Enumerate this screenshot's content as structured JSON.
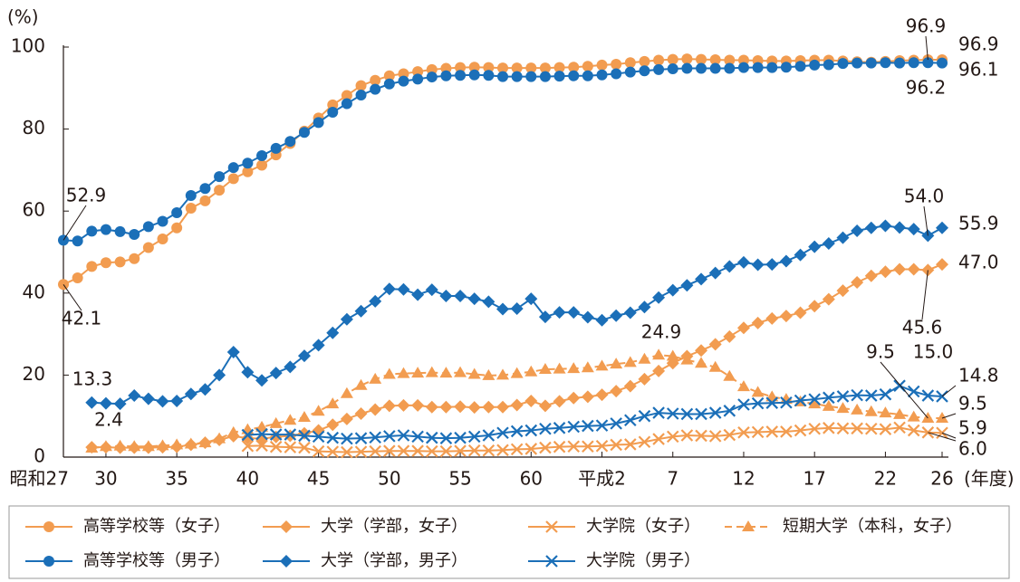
{
  "chart_data": {
    "type": "line",
    "y_label": "(%)",
    "x_label": "(年度)",
    "categories": [
      "昭和27",
      null,
      null,
      "30",
      null,
      null,
      null,
      null,
      "35",
      null,
      null,
      null,
      null,
      "40",
      null,
      null,
      null,
      null,
      "45",
      null,
      null,
      null,
      null,
      "50",
      null,
      null,
      null,
      null,
      "55",
      null,
      null,
      null,
      null,
      "60",
      null,
      null,
      null,
      null,
      "平成2",
      null,
      null,
      null,
      null,
      "7",
      null,
      null,
      null,
      null,
      "12",
      null,
      null,
      null,
      null,
      "17",
      null,
      null,
      null,
      null,
      "22",
      null,
      null,
      null,
      "26"
    ],
    "ylim": [
      0,
      100
    ],
    "yticks": [
      0,
      20,
      40,
      60,
      80,
      100
    ],
    "grid": false,
    "series": [
      {
        "name": "高等学校等（女子）",
        "color": "#f29c50",
        "marker": "circle",
        "dashed": false,
        "values": [
          42.1,
          43.7,
          46.5,
          47.4,
          47.6,
          48.4,
          51.1,
          53.2,
          55.9,
          60.7,
          62.5,
          65.1,
          67.9,
          69.6,
          71.2,
          73.7,
          76.5,
          79.5,
          82.7,
          85.9,
          88.2,
          90.6,
          91.9,
          93.0,
          93.5,
          94.0,
          94.5,
          94.8,
          95.0,
          95.1,
          95.0,
          94.9,
          94.9,
          94.9,
          94.9,
          95.0,
          95.1,
          95.3,
          95.6,
          95.8,
          96.2,
          96.5,
          96.8,
          97.0,
          97.1,
          97.0,
          96.9,
          96.8,
          96.8,
          96.7,
          96.6,
          96.6,
          96.7,
          96.8,
          96.8,
          96.6,
          96.4,
          96.3,
          96.5,
          96.7,
          96.8,
          96.9,
          96.9
        ],
        "value_labels": [
          "42.1",
          null,
          null,
          null,
          null,
          null,
          null,
          null,
          null,
          null,
          null,
          null,
          null,
          null,
          null,
          null,
          null,
          null,
          null,
          null,
          null,
          null,
          null,
          null,
          null,
          null,
          null,
          null,
          null,
          null,
          null,
          null,
          null,
          null,
          null,
          null,
          null,
          null,
          null,
          null,
          null,
          null,
          null,
          null,
          null,
          null,
          null,
          null,
          null,
          null,
          null,
          null,
          null,
          null,
          null,
          null,
          null,
          null,
          null,
          null,
          null,
          "96.9",
          "96.9"
        ]
      },
      {
        "name": "大学（学部，女子）",
        "color": "#f29c50",
        "marker": "diamond",
        "dashed": false,
        "values": [
          null,
          null,
          2.4,
          2.4,
          2.3,
          2.3,
          2.3,
          2.4,
          2.5,
          3.0,
          3.5,
          4.2,
          5.1,
          4.6,
          4.5,
          4.9,
          5.2,
          5.8,
          6.5,
          7.9,
          9.3,
          10.6,
          11.6,
          12.5,
          12.6,
          12.6,
          12.2,
          12.2,
          12.3,
          12.1,
          12.2,
          12.2,
          12.7,
          13.7,
          12.5,
          13.6,
          14.4,
          14.7,
          15.2,
          16.1,
          17.3,
          19.0,
          21.0,
          22.9,
          24.6,
          26.0,
          27.5,
          29.4,
          31.5,
          32.7,
          33.8,
          34.4,
          35.2,
          36.8,
          38.5,
          40.6,
          42.6,
          44.2,
          45.2,
          45.8,
          45.8,
          45.6,
          47.0
        ],
        "value_labels": [
          null,
          null,
          "2.4",
          null,
          null,
          null,
          null,
          null,
          null,
          null,
          null,
          null,
          null,
          null,
          null,
          null,
          null,
          null,
          null,
          null,
          null,
          null,
          null,
          null,
          null,
          null,
          null,
          null,
          null,
          null,
          null,
          null,
          null,
          null,
          null,
          null,
          null,
          null,
          null,
          null,
          null,
          null,
          null,
          null,
          null,
          null,
          null,
          null,
          null,
          null,
          null,
          null,
          null,
          null,
          null,
          null,
          null,
          null,
          null,
          null,
          null,
          "45.6",
          "47.0"
        ]
      },
      {
        "name": "大学院（女子）",
        "color": "#f29c50",
        "marker": "x",
        "dashed": false,
        "values": [
          null,
          null,
          null,
          null,
          null,
          null,
          null,
          null,
          null,
          null,
          null,
          null,
          null,
          2.7,
          2.8,
          2.5,
          2.4,
          2.3,
          1.4,
          1.3,
          1.2,
          1.3,
          1.4,
          1.5,
          1.5,
          1.5,
          1.4,
          1.4,
          1.5,
          1.6,
          1.6,
          1.7,
          1.9,
          2.0,
          2.3,
          2.5,
          2.6,
          2.6,
          2.7,
          3.0,
          3.1,
          3.7,
          4.4,
          5.0,
          5.3,
          5.2,
          5.1,
          5.4,
          6.0,
          6.1,
          6.2,
          6.2,
          6.5,
          6.9,
          7.1,
          7.0,
          7.0,
          6.9,
          6.8,
          7.2,
          6.5,
          6.0,
          5.9
        ],
        "value_labels": [
          null,
          null,
          null,
          null,
          null,
          null,
          null,
          null,
          null,
          null,
          null,
          null,
          null,
          null,
          null,
          null,
          null,
          null,
          null,
          null,
          null,
          null,
          null,
          null,
          null,
          null,
          null,
          null,
          null,
          null,
          null,
          null,
          null,
          null,
          null,
          null,
          null,
          null,
          null,
          null,
          null,
          null,
          null,
          null,
          null,
          null,
          null,
          null,
          null,
          null,
          null,
          null,
          null,
          null,
          null,
          null,
          null,
          null,
          null,
          null,
          null,
          "6.0",
          "5.9"
        ]
      },
      {
        "name": "短期大学（本科，女子）",
        "color": "#f29c50",
        "marker": "triangle",
        "dashed": true,
        "values": [
          null,
          null,
          2.2,
          2.6,
          2.7,
          2.6,
          2.6,
          2.8,
          3.0,
          3.2,
          3.5,
          4.5,
          6.0,
          6.7,
          7.3,
          8.2,
          9.0,
          9.7,
          11.2,
          13.0,
          15.5,
          17.5,
          19.0,
          20.2,
          20.4,
          20.5,
          20.6,
          20.5,
          20.6,
          20.2,
          19.9,
          20.0,
          20.4,
          20.8,
          21.4,
          21.5,
          21.6,
          21.8,
          22.2,
          22.7,
          23.1,
          23.9,
          24.9,
          24.6,
          23.7,
          22.9,
          21.9,
          19.7,
          17.2,
          15.8,
          14.7,
          14.1,
          13.5,
          13.0,
          12.4,
          11.9,
          11.5,
          11.1,
          10.8,
          10.4,
          9.8,
          9.5,
          9.5
        ],
        "value_labels": [
          null,
          null,
          null,
          null,
          null,
          null,
          null,
          null,
          null,
          null,
          null,
          null,
          null,
          null,
          null,
          null,
          null,
          null,
          null,
          null,
          null,
          null,
          null,
          null,
          null,
          null,
          null,
          null,
          null,
          null,
          null,
          null,
          null,
          null,
          null,
          null,
          null,
          null,
          null,
          null,
          null,
          null,
          "24.9",
          null,
          null,
          null,
          null,
          null,
          null,
          null,
          null,
          null,
          null,
          null,
          null,
          null,
          null,
          null,
          null,
          null,
          null,
          "9.5",
          "9.5"
        ]
      },
      {
        "name": "高等学校等（男子）",
        "color": "#1b6fb8",
        "marker": "circle",
        "dashed": false,
        "values": [
          52.9,
          52.7,
          55.1,
          55.5,
          55.0,
          54.3,
          56.2,
          57.5,
          59.6,
          63.8,
          65.5,
          68.4,
          70.6,
          71.7,
          73.5,
          75.3,
          77.0,
          79.2,
          81.6,
          84.1,
          86.2,
          88.3,
          89.7,
          91.0,
          91.7,
          92.2,
          92.7,
          93.0,
          93.1,
          93.2,
          93.1,
          92.8,
          92.8,
          92.8,
          92.8,
          92.9,
          93.0,
          93.0,
          93.2,
          93.5,
          93.9,
          94.2,
          94.5,
          94.7,
          94.8,
          94.8,
          94.8,
          94.8,
          95.0,
          95.0,
          95.0,
          95.1,
          95.3,
          95.6,
          95.7,
          96.0,
          96.1,
          96.1,
          96.2,
          96.1,
          96.2,
          96.2,
          96.1
        ],
        "value_labels": [
          "52.9",
          null,
          null,
          null,
          null,
          null,
          null,
          null,
          null,
          null,
          null,
          null,
          null,
          null,
          null,
          null,
          null,
          null,
          null,
          null,
          null,
          null,
          null,
          null,
          null,
          null,
          null,
          null,
          null,
          null,
          null,
          null,
          null,
          null,
          null,
          null,
          null,
          null,
          null,
          null,
          null,
          null,
          null,
          null,
          null,
          null,
          null,
          null,
          null,
          null,
          null,
          null,
          null,
          null,
          null,
          null,
          null,
          null,
          null,
          null,
          null,
          "96.2",
          "96.1"
        ]
      },
      {
        "name": "大学（学部，男子）",
        "color": "#1b6fb8",
        "marker": "diamond",
        "dashed": false,
        "values": [
          null,
          null,
          13.3,
          13.1,
          13.0,
          15.0,
          14.2,
          13.6,
          13.7,
          15.4,
          16.5,
          20.0,
          25.6,
          20.7,
          18.7,
          20.5,
          22.0,
          24.7,
          27.3,
          30.3,
          33.6,
          35.6,
          38.0,
          41.0,
          40.9,
          39.6,
          40.8,
          39.3,
          39.3,
          38.6,
          37.9,
          36.1,
          36.2,
          38.6,
          34.2,
          35.3,
          35.3,
          34.1,
          33.4,
          34.5,
          35.2,
          36.6,
          38.9,
          40.7,
          41.9,
          43.4,
          44.9,
          46.5,
          47.5,
          46.9,
          47.0,
          47.8,
          49.3,
          51.3,
          52.1,
          53.5,
          55.2,
          55.9,
          56.4,
          56.0,
          55.6,
          54.0,
          55.9
        ],
        "value_labels": [
          null,
          null,
          "13.3",
          null,
          null,
          null,
          null,
          null,
          null,
          null,
          null,
          null,
          null,
          null,
          null,
          null,
          null,
          null,
          null,
          null,
          null,
          null,
          null,
          null,
          null,
          null,
          null,
          null,
          null,
          null,
          null,
          null,
          null,
          null,
          null,
          null,
          null,
          null,
          null,
          null,
          null,
          null,
          null,
          null,
          null,
          null,
          null,
          null,
          null,
          null,
          null,
          null,
          null,
          null,
          null,
          null,
          null,
          null,
          null,
          null,
          null,
          "54.0",
          "55.9"
        ]
      },
      {
        "name": "大学院（男子）",
        "color": "#1b6fb8",
        "marker": "x",
        "dashed": false,
        "values": [
          null,
          null,
          null,
          null,
          null,
          null,
          null,
          null,
          null,
          null,
          null,
          null,
          null,
          5.4,
          5.6,
          5.5,
          5.5,
          5.2,
          5.0,
          4.7,
          4.5,
          4.6,
          4.8,
          5.1,
          5.3,
          5.0,
          4.7,
          4.6,
          4.7,
          5.0,
          5.3,
          5.9,
          6.3,
          6.5,
          6.9,
          7.1,
          7.4,
          7.6,
          7.7,
          8.2,
          9.0,
          10.0,
          10.8,
          10.6,
          10.5,
          10.5,
          10.8,
          11.3,
          12.8,
          13.1,
          13.2,
          13.3,
          13.8,
          14.1,
          14.5,
          14.8,
          15.1,
          15.0,
          15.3,
          17.4,
          16.0,
          15.0,
          14.8
        ],
        "value_labels": [
          null,
          null,
          null,
          null,
          null,
          null,
          null,
          null,
          null,
          null,
          null,
          null,
          null,
          null,
          null,
          null,
          null,
          null,
          null,
          null,
          null,
          null,
          null,
          null,
          null,
          null,
          null,
          null,
          null,
          null,
          null,
          null,
          null,
          null,
          null,
          null,
          null,
          null,
          null,
          null,
          null,
          null,
          null,
          null,
          null,
          null,
          null,
          null,
          null,
          null,
          null,
          null,
          null,
          null,
          null,
          null,
          null,
          null,
          null,
          null,
          null,
          "15.0",
          "14.8"
        ]
      }
    ]
  }
}
